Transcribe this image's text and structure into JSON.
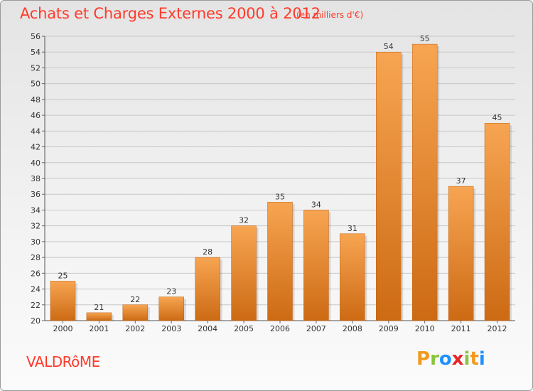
{
  "chart_data": {
    "type": "bar",
    "title": "Achats et Charges Externes 2000 à 2012",
    "subtitle": "(en milliers d'€)",
    "categories": [
      "2000",
      "2001",
      "2002",
      "2003",
      "2004",
      "2005",
      "2006",
      "2007",
      "2008",
      "2009",
      "2010",
      "2011",
      "2012"
    ],
    "values": [
      25,
      21,
      22,
      23,
      28,
      32,
      35,
      34,
      31,
      54,
      55,
      37,
      45
    ],
    "ylim": [
      20,
      56
    ],
    "yticks": [
      20,
      22,
      24,
      26,
      28,
      30,
      32,
      34,
      36,
      38,
      40,
      42,
      44,
      46,
      48,
      50,
      52,
      54,
      56
    ],
    "grid": true,
    "legend": "none",
    "bar_color_top": "#f7a552",
    "bar_color_bottom": "#cd6a14",
    "data_labels": true
  },
  "place_name": "VALDRôME",
  "logo": {
    "text": "Proxiti",
    "letters": [
      {
        "ch": "P",
        "color": "#f29a1c"
      },
      {
        "ch": "r",
        "color": "#8ac43f"
      },
      {
        "ch": "o",
        "color": "#1e90ff"
      },
      {
        "ch": "x",
        "color": "#e8262a"
      },
      {
        "ch": "i",
        "color": "#8ac43f"
      },
      {
        "ch": "t",
        "color": "#f29a1c"
      },
      {
        "ch": "i",
        "color": "#1e90ff"
      }
    ]
  },
  "colors": {
    "accent_text": "#ff3a2a",
    "grid": "#c8c8c8"
  }
}
